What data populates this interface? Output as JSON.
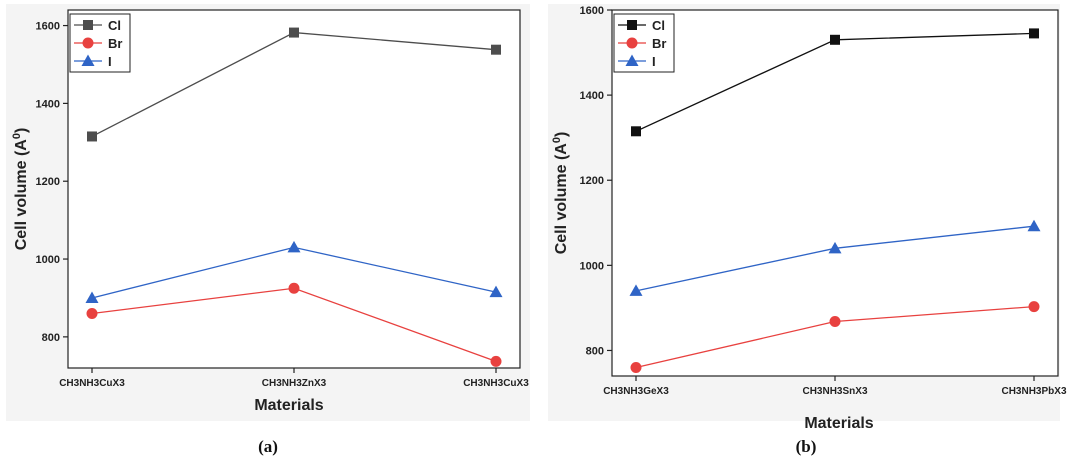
{
  "chart_data": [
    {
      "type": "line",
      "panel_label": "(a)",
      "categories": [
        "CH3NH3CuX3",
        "CH3NH3ZnX3",
        "CH3NH3CuX3"
      ],
      "series": [
        {
          "name": "Cl",
          "values": [
            1315,
            1582,
            1538
          ],
          "color": "#4d4d4d",
          "marker": "square"
        },
        {
          "name": "Br",
          "values": [
            860,
            925,
            737
          ],
          "color": "#e8413f",
          "marker": "circle"
        },
        {
          "name": "I",
          "values": [
            900,
            1030,
            915
          ],
          "color": "#2f64c6",
          "marker": "triangle"
        }
      ],
      "xlabel": "Materials",
      "ylabel": "Cell volume (A",
      "ylabel_sup": "0",
      "ylabel_close": ")",
      "ylim": [
        720,
        1640
      ],
      "yticks": [
        800,
        1000,
        1200,
        1400,
        1600
      ],
      "legend_position": "top-left",
      "grid": false
    },
    {
      "type": "line",
      "panel_label": "(b)",
      "categories": [
        "CH3NH3GeX3",
        "CH3NH3SnX3",
        "CH3NH3PbX3"
      ],
      "series": [
        {
          "name": "Cl",
          "values": [
            1315,
            1530,
            1545
          ],
          "color": "#111111",
          "marker": "square"
        },
        {
          "name": "Br",
          "values": [
            760,
            868,
            903
          ],
          "color": "#e8413f",
          "marker": "circle"
        },
        {
          "name": "I",
          "values": [
            940,
            1040,
            1092
          ],
          "color": "#2f64c6",
          "marker": "triangle"
        }
      ],
      "xlabel": "Materials",
      "ylabel": "Cell volume (A",
      "ylabel_sup": "0",
      "ylabel_close": ")",
      "ylim": [
        740,
        1600
      ],
      "yticks": [
        800,
        1000,
        1200,
        1400,
        1600
      ],
      "legend_position": "top-left",
      "grid": false
    }
  ]
}
